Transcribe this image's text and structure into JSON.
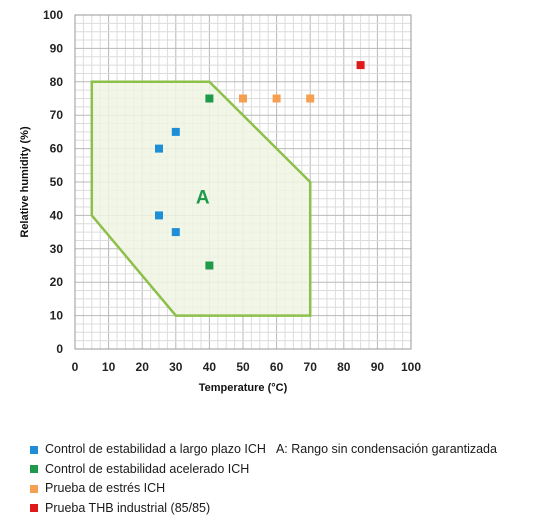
{
  "chart_data": {
    "type": "scatter",
    "xlabel": "Temperature (°C)",
    "ylabel": "Relative humidity (%)",
    "xlim": [
      0,
      100
    ],
    "ylim": [
      0,
      100
    ],
    "xticks": [
      0,
      10,
      20,
      30,
      40,
      50,
      60,
      70,
      80,
      90,
      100
    ],
    "yticks": [
      0,
      10,
      20,
      30,
      40,
      50,
      60,
      70,
      80,
      90,
      100
    ],
    "grid": true,
    "region": {
      "label": "A",
      "polygon": [
        [
          5,
          80
        ],
        [
          40,
          80
        ],
        [
          70,
          50
        ],
        [
          70,
          10
        ],
        [
          30,
          10
        ],
        [
          5,
          40
        ]
      ],
      "fill": "#f0f4e2",
      "stroke": "#8cc04a"
    },
    "series": [
      {
        "name": "Control de estabilidad a largo plazo ICH",
        "color": "#1e8fd6",
        "points": [
          [
            25,
            60
          ],
          [
            30,
            65
          ],
          [
            25,
            40
          ],
          [
            30,
            35
          ]
        ]
      },
      {
        "name": "Control de estabilidad acelerado ICH",
        "color": "#1e9a4a",
        "points": [
          [
            40,
            75
          ],
          [
            40,
            25
          ]
        ]
      },
      {
        "name": "Prueba de estrés ICH",
        "color": "#f5a050",
        "points": [
          [
            50,
            75
          ],
          [
            60,
            75
          ],
          [
            70,
            75
          ]
        ]
      },
      {
        "name": "Prueba THB industrial (85/85)",
        "color": "#e01a1a",
        "points": [
          [
            85,
            85
          ]
        ]
      }
    ],
    "legend_note": "A: Rango sin condensación garantizada",
    "legend_position": "bottom-left"
  }
}
